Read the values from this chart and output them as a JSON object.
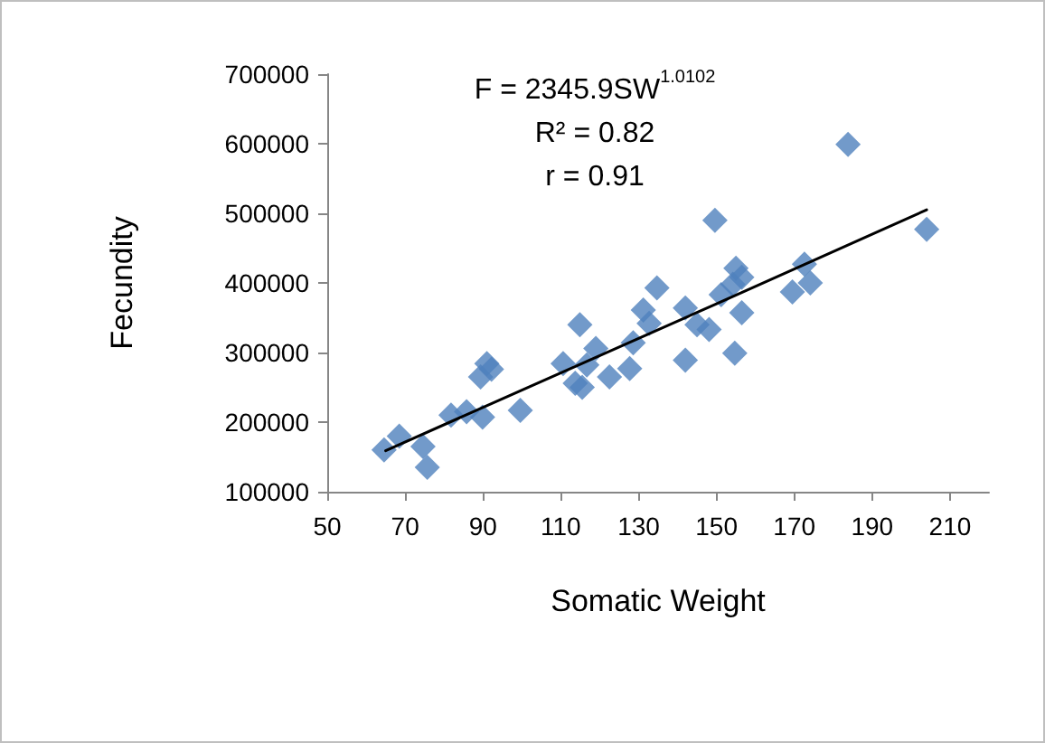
{
  "chart_data": {
    "type": "scatter",
    "xlabel": "Somatic Weight",
    "ylabel": "Fecundity",
    "annotations": [
      "F = 2345.9SW$^{1.0102}$",
      "R² = 0.82",
      "r = 0.91"
    ],
    "xlim": [
      50,
      220
    ],
    "xticks": [
      50,
      70,
      90,
      110,
      130,
      150,
      170,
      190,
      210
    ],
    "ylim": [
      100000,
      700000
    ],
    "yticks": [
      100000,
      200000,
      300000,
      400000,
      500000,
      600000,
      700000
    ],
    "grid": false,
    "marker": "diamond",
    "series": [
      {
        "color": "#4f81bd",
        "x": [
          64.6,
          68.5,
          74.6,
          75.7,
          81.8,
          85.8,
          89.9,
          89.4,
          91,
          92.2,
          99.6,
          110.6,
          113.7,
          114.9,
          115.5,
          119,
          116.7,
          122.5,
          127.7,
          128.6,
          131.2,
          132.7,
          134.7,
          142,
          142,
          145,
          148.1,
          149.6,
          151.2,
          155,
          156.5,
          154.7,
          156.5,
          154.2,
          169.5,
          172.6,
          174.1,
          183.8,
          204
        ],
        "values": [
          160000,
          180000,
          165000,
          135000,
          210000,
          215000,
          207000,
          265000,
          284000,
          276000,
          217000,
          284000,
          256000,
          340000,
          250000,
          306000,
          282000,
          265000,
          277000,
          314000,
          361000,
          342000,
          393000,
          364000,
          289000,
          340000,
          333000,
          490000,
          383000,
          421000,
          408000,
          299000,
          357000,
          398000,
          387000,
          427000,
          400000,
          599000,
          477000
        ]
      },
      {
        "type": "line",
        "color": "#000000",
        "marker": "none",
        "x": [
          65,
          100,
          150,
          204
        ],
        "values": [
          159000,
          246000,
          370000,
          505000
        ]
      }
    ]
  }
}
